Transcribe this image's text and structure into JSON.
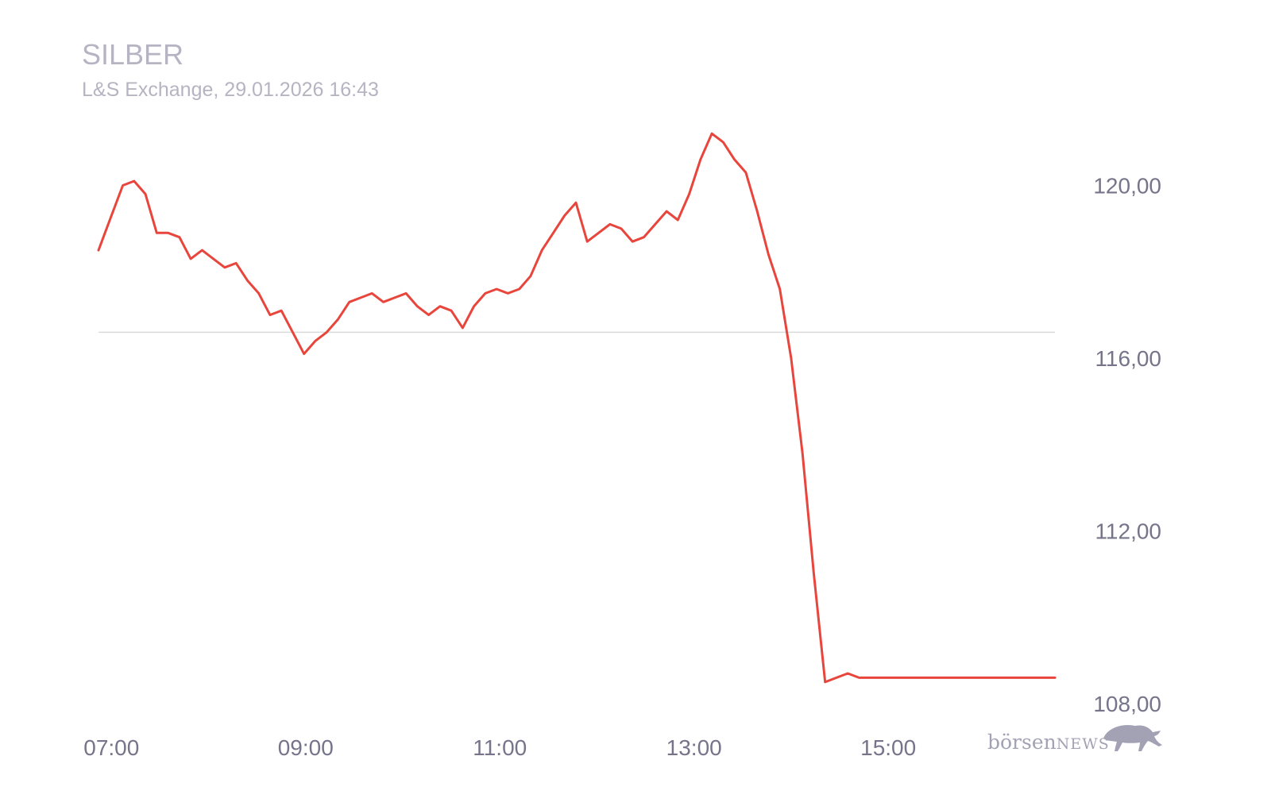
{
  "chart_data": {
    "type": "line",
    "title": "SILBER",
    "subtitle": "L&S Exchange, 29.01.2026 16:43",
    "xlabel": "",
    "ylabel": "",
    "x_ticks": [
      "07:00",
      "09:00",
      "11:00",
      "13:00",
      "15:00"
    ],
    "y_ticks": [
      "120,00",
      "116,00",
      "112,00",
      "108,00"
    ],
    "y_tick_values": [
      120,
      116,
      112,
      108
    ],
    "ylim": [
      107.1,
      122.05
    ],
    "xlim": [
      "06:52",
      "16:43"
    ],
    "reference_line": 116.6,
    "grid": false,
    "line_color": "#e8453c",
    "reference_color": "#dadada",
    "series": [
      {
        "x": [
          "06:52",
          "07:00",
          "07:07",
          "07:14",
          "07:21",
          "07:28",
          "07:35",
          "07:42",
          "07:49",
          "07:56",
          "08:03",
          "08:10",
          "08:17",
          "08:24",
          "08:31",
          "08:38",
          "08:45",
          "08:52",
          "08:59",
          "09:06",
          "09:13",
          "09:20",
          "09:27",
          "09:34",
          "09:41",
          "09:48",
          "09:55",
          "10:02",
          "10:09",
          "10:16",
          "10:23",
          "10:30",
          "10:37",
          "10:44",
          "10:51",
          "10:58",
          "11:05",
          "11:12",
          "11:19",
          "11:26",
          "11:33",
          "11:40",
          "11:47",
          "11:54",
          "12:01",
          "12:08",
          "12:15",
          "12:22",
          "12:29",
          "12:36",
          "12:43",
          "12:50",
          "12:57",
          "13:04",
          "13:11",
          "13:18",
          "13:25",
          "13:32",
          "13:39",
          "13:46",
          "13:53",
          "14:00",
          "14:07",
          "14:14",
          "14:21",
          "14:28",
          "14:35",
          "14:42",
          "14:49",
          "14:56",
          "15:03",
          "15:10",
          "15:17",
          "15:24",
          "15:31",
          "15:38",
          "15:45",
          "15:52",
          "15:59",
          "16:06",
          "16:13",
          "16:20",
          "16:27",
          "16:34",
          "16:43"
        ],
        "values": [
          118.5,
          119.3,
          120.0,
          120.1,
          119.8,
          118.9,
          118.9,
          118.8,
          118.3,
          118.5,
          118.3,
          118.1,
          118.2,
          117.8,
          117.5,
          117.0,
          117.1,
          116.6,
          116.1,
          116.4,
          116.6,
          116.9,
          117.3,
          117.4,
          117.5,
          117.3,
          117.4,
          117.5,
          117.2,
          117.0,
          117.2,
          117.1,
          116.7,
          117.2,
          117.5,
          117.6,
          117.5,
          117.6,
          117.9,
          118.5,
          118.9,
          119.3,
          119.6,
          118.7,
          118.9,
          119.1,
          119.0,
          118.7,
          118.8,
          119.1,
          119.4,
          119.2,
          119.8,
          120.6,
          121.2,
          121.0,
          120.6,
          120.3,
          119.4,
          118.4,
          117.6,
          116.0,
          113.8,
          111.0,
          108.5,
          108.6,
          108.7,
          108.6,
          108.6,
          108.6,
          108.6,
          108.6,
          108.6,
          108.6,
          108.6,
          108.6,
          108.6,
          108.6,
          108.6,
          108.6,
          108.6,
          108.6,
          108.6,
          108.6,
          108.6
        ]
      }
    ]
  },
  "logo": {
    "text_regular": "börsen",
    "text_small_caps": "NEWS",
    "icon": "bull-icon"
  }
}
